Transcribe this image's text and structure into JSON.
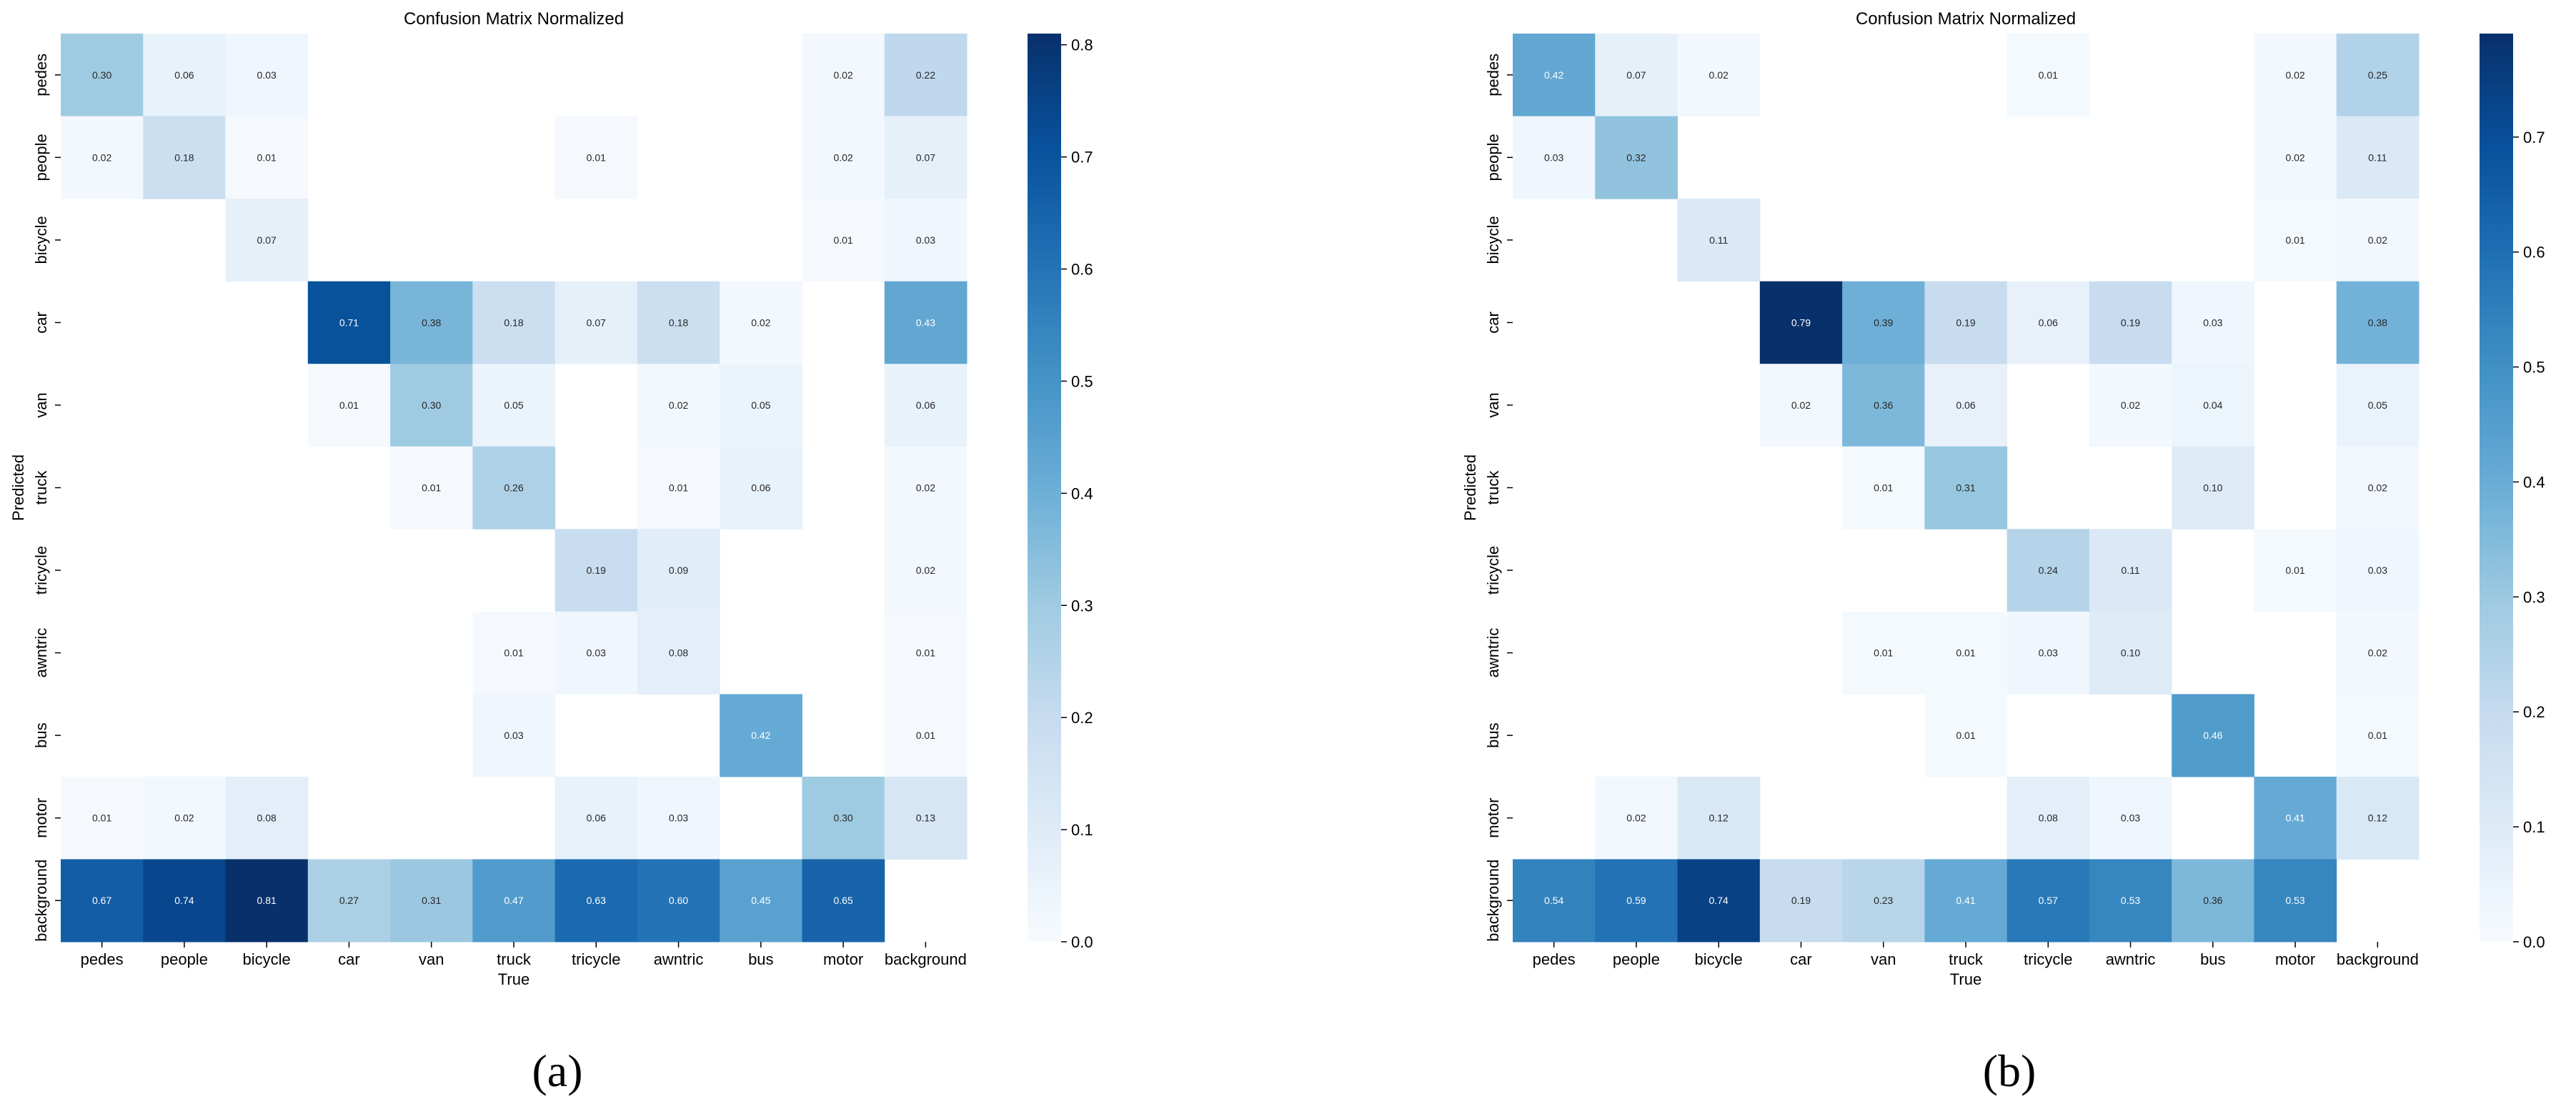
{
  "chart_data": [
    {
      "type": "heatmap",
      "title": "Confusion Matrix Normalized",
      "panel_label": "(a)",
      "xlabel": "True",
      "ylabel": "Predicted",
      "x_categories": [
        "pedes",
        "people",
        "bicycle",
        "car",
        "van",
        "truck",
        "tricycle",
        "awntric",
        "bus",
        "motor",
        "background"
      ],
      "y_categories": [
        "pedes",
        "people",
        "bicycle",
        "car",
        "van",
        "truck",
        "tricycle",
        "awntric",
        "bus",
        "motor",
        "background"
      ],
      "values": [
        [
          0.3,
          0.06,
          0.03,
          null,
          null,
          null,
          null,
          null,
          null,
          0.02,
          0.22
        ],
        [
          0.02,
          0.18,
          0.01,
          null,
          null,
          null,
          0.01,
          null,
          null,
          0.02,
          0.07
        ],
        [
          null,
          null,
          0.07,
          null,
          null,
          null,
          null,
          null,
          null,
          0.01,
          0.03
        ],
        [
          null,
          null,
          null,
          0.71,
          0.38,
          0.18,
          0.07,
          0.18,
          0.02,
          null,
          0.43
        ],
        [
          null,
          null,
          null,
          0.01,
          0.3,
          0.05,
          null,
          0.02,
          0.05,
          null,
          0.06
        ],
        [
          null,
          null,
          null,
          null,
          0.01,
          0.26,
          null,
          0.01,
          0.06,
          null,
          0.02
        ],
        [
          null,
          null,
          null,
          null,
          null,
          null,
          0.19,
          0.09,
          null,
          null,
          0.02
        ],
        [
          null,
          null,
          null,
          null,
          null,
          0.01,
          0.03,
          0.08,
          null,
          null,
          0.01
        ],
        [
          null,
          null,
          null,
          null,
          null,
          0.03,
          null,
          null,
          0.42,
          null,
          0.01
        ],
        [
          0.01,
          0.02,
          0.08,
          null,
          null,
          null,
          0.06,
          0.03,
          null,
          0.3,
          0.13
        ],
        [
          0.67,
          0.74,
          0.81,
          0.27,
          0.31,
          0.47,
          0.63,
          0.6,
          0.45,
          0.65,
          null
        ]
      ],
      "colorbar": {
        "min": 0.0,
        "max": 0.81,
        "ticks": [
          0.0,
          0.1,
          0.2,
          0.3,
          0.4,
          0.5,
          0.6,
          0.7,
          0.8
        ],
        "tick_labels": [
          "0.0",
          "0.1",
          "0.2",
          "0.3",
          "0.4",
          "0.5",
          "0.6",
          "0.7",
          "0.8"
        ]
      }
    },
    {
      "type": "heatmap",
      "title": "Confusion Matrix Normalized",
      "panel_label": "(b)",
      "xlabel": "True",
      "ylabel": "Predicted",
      "x_categories": [
        "pedes",
        "people",
        "bicycle",
        "car",
        "van",
        "truck",
        "tricycle",
        "awntric",
        "bus",
        "motor",
        "background"
      ],
      "y_categories": [
        "pedes",
        "people",
        "bicycle",
        "car",
        "van",
        "truck",
        "tricycle",
        "awntric",
        "bus",
        "motor",
        "background"
      ],
      "values": [
        [
          0.42,
          0.07,
          0.02,
          null,
          null,
          null,
          0.01,
          null,
          null,
          0.02,
          0.25
        ],
        [
          0.03,
          0.32,
          null,
          null,
          null,
          null,
          null,
          null,
          null,
          0.02,
          0.11
        ],
        [
          null,
          null,
          0.11,
          null,
          null,
          null,
          null,
          null,
          null,
          0.01,
          0.02
        ],
        [
          null,
          null,
          null,
          0.79,
          0.39,
          0.19,
          0.06,
          0.19,
          0.03,
          null,
          0.38
        ],
        [
          null,
          null,
          null,
          0.02,
          0.36,
          0.06,
          null,
          0.02,
          0.04,
          null,
          0.05
        ],
        [
          null,
          null,
          null,
          null,
          0.01,
          0.31,
          null,
          null,
          0.1,
          null,
          0.02
        ],
        [
          null,
          null,
          null,
          null,
          null,
          null,
          0.24,
          0.11,
          null,
          0.01,
          0.03
        ],
        [
          null,
          null,
          null,
          null,
          0.01,
          0.01,
          0.03,
          0.1,
          null,
          null,
          0.02
        ],
        [
          null,
          null,
          null,
          null,
          null,
          0.01,
          null,
          null,
          0.46,
          null,
          0.01
        ],
        [
          null,
          0.02,
          0.12,
          null,
          null,
          null,
          0.08,
          0.03,
          null,
          0.41,
          0.12
        ],
        [
          0.54,
          0.59,
          0.74,
          0.19,
          0.23,
          0.41,
          0.57,
          0.53,
          0.36,
          0.53,
          null
        ]
      ],
      "colorbar": {
        "min": 0.0,
        "max": 0.79,
        "ticks": [
          0.0,
          0.1,
          0.2,
          0.3,
          0.4,
          0.5,
          0.6,
          0.7
        ],
        "tick_labels": [
          "0.0",
          "0.1",
          "0.2",
          "0.3",
          "0.4",
          "0.5",
          "0.6",
          "0.7"
        ]
      }
    }
  ],
  "colors": {
    "colormap": "Blues",
    "stops": [
      "#f7fbff",
      "#deebf7",
      "#c6dbef",
      "#9ecae1",
      "#6baed6",
      "#4292c6",
      "#2171b5",
      "#08519c",
      "#08306b"
    ]
  }
}
